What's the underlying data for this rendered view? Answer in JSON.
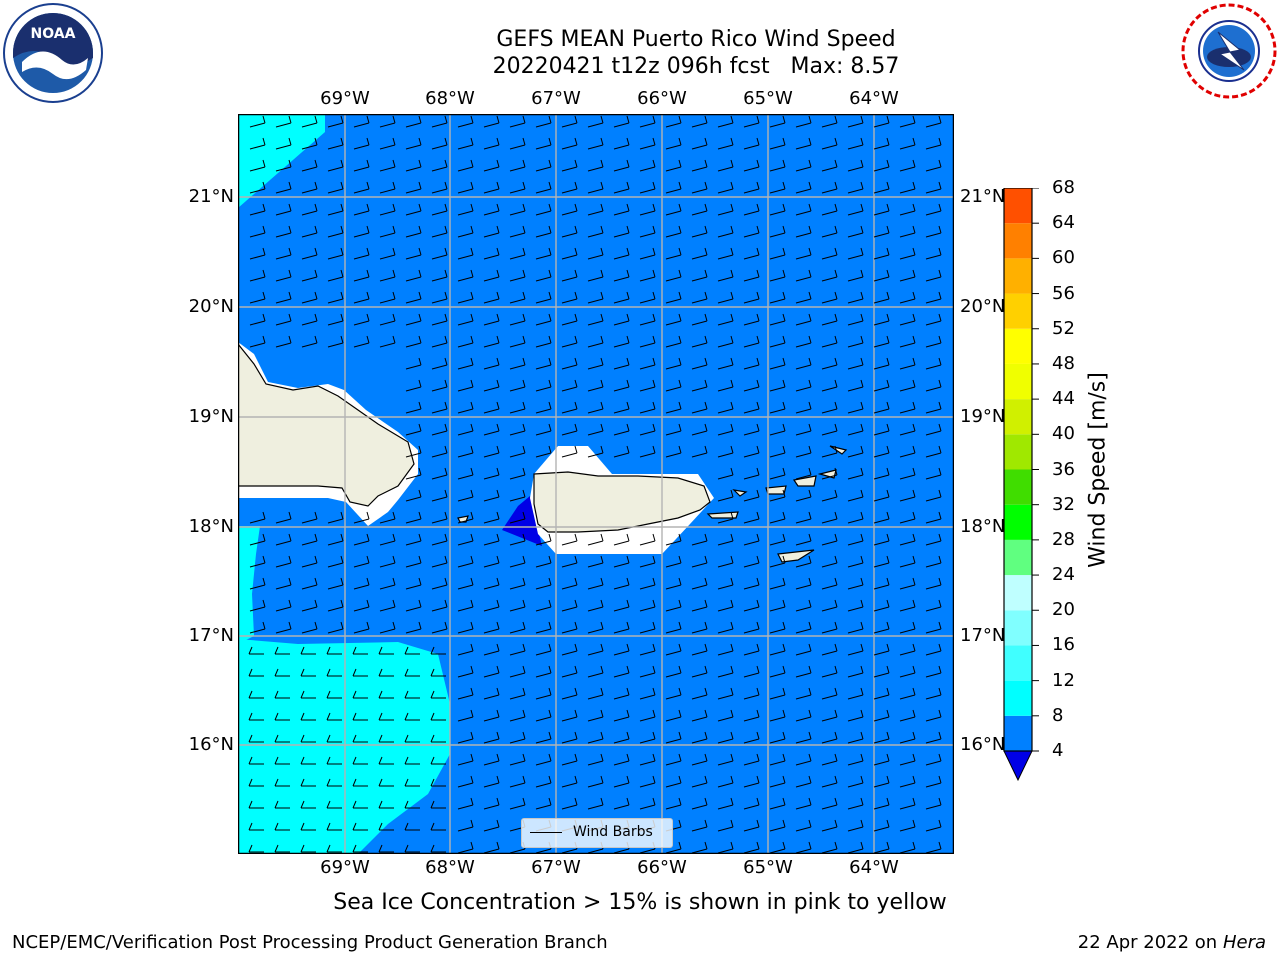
{
  "header": {
    "title_line1": "GEFS MEAN Puerto Rico Wind Speed",
    "title_line2": "20220421 t12z 096h fcst   Max: 8.57"
  },
  "logos": {
    "left": {
      "icon": "noaa-logo-icon",
      "text": "NOAA",
      "ring_text": "NATIONAL OCEANIC AND ATMOSPHERIC ADMINISTRATION · U.S. DEPARTMENT OF COMMERCE"
    },
    "right": {
      "icon": "national-weather-service-logo-icon",
      "ring_text": "NATIONAL WEATHER SERVICE"
    }
  },
  "map": {
    "longitude_labels": [
      "69°W",
      "68°W",
      "67°W",
      "66°W",
      "65°W",
      "64°W"
    ],
    "latitude_labels": [
      "21°N",
      "20°N",
      "19°N",
      "18°N",
      "17°N",
      "16°N"
    ],
    "colors": {
      "speed_4_8": "#0080ff",
      "speed_8_12": "#00ffff",
      "speed_below_4": "#0000e6",
      "land": "#efefdf",
      "grid": "#b4b4b4"
    },
    "legend_label": "Wind Barbs"
  },
  "colorbar": {
    "title": "Wind Speed [m/s]",
    "ticks": [
      "68",
      "64",
      "60",
      "56",
      "52",
      "48",
      "44",
      "40",
      "36",
      "32",
      "28",
      "24",
      "20",
      "16",
      "12",
      "8",
      "4"
    ],
    "colors_bottom_to_top": [
      "#0080ff",
      "#00ffff",
      "#40ffff",
      "#80ffff",
      "#bfffff",
      "#60ff80",
      "#00ff00",
      "#40dd00",
      "#a0e800",
      "#d0f000",
      "#f0ff00",
      "#ffff00",
      "#ffd000",
      "#ffb000",
      "#ff8000",
      "#ff5000",
      "#ff2000",
      "#ff0000"
    ],
    "extend_min_color": "#0000e6"
  },
  "note": "Sea Ice Concentration > 15% is shown in pink to yellow",
  "footer": {
    "left": "NCEP/EMC/Verification Post Processing Product Generation Branch",
    "right_date": "22 Apr 2022 on ",
    "right_machine": "Hera"
  }
}
